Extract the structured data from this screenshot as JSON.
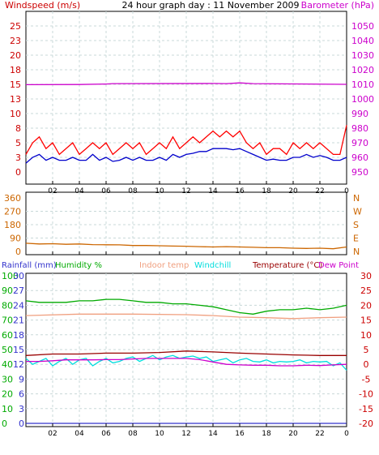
{
  "chart_data": [
    {
      "type": "line",
      "title": "24 hour graph day : 11 November 2009",
      "left_label": "Windspeed (m/s)",
      "right_label": "Barometer (hPa)",
      "left_ticks": [
        "0",
        "3",
        "5",
        "8",
        "10",
        "13",
        "15",
        "18",
        "20",
        "23",
        "25"
      ],
      "right_ticks": [
        "950",
        "960",
        "970",
        "980",
        "990",
        "1000",
        "1010",
        "1020",
        "1030",
        "1040",
        "1050"
      ],
      "x_ticks": [
        "02",
        "04",
        "06",
        "08",
        "10",
        "12",
        "14",
        "16",
        "18",
        "20",
        "22",
        "0"
      ],
      "ylim_left": [
        0,
        25
      ],
      "ylim_right": [
        950,
        1050
      ],
      "xlim": [
        0,
        24
      ],
      "grid": true,
      "series": [
        {
          "name": "Barometer",
          "color": "#cc00cc",
          "axis": "right",
          "x": [
            0,
            4,
            6,
            6.5,
            14,
            15,
            16,
            17,
            24
          ],
          "y": [
            1009.8,
            1009.9,
            1010.2,
            1010.5,
            1010.6,
            1010.5,
            1011.0,
            1010.5,
            1010.0
          ]
        },
        {
          "name": "Gust",
          "color": "#ff0000",
          "axis": "left",
          "x": [
            0,
            0.5,
            1,
            1.5,
            2,
            2.5,
            3,
            3.5,
            4,
            4.5,
            5,
            5.5,
            6,
            6.5,
            7,
            7.5,
            8,
            8.5,
            9,
            9.5,
            10,
            10.5,
            11,
            11.5,
            12,
            12.5,
            13,
            13.5,
            14,
            14.5,
            15,
            15.5,
            16,
            16.5,
            17,
            17.5,
            18,
            18.5,
            19,
            19.5,
            20,
            20.5,
            21,
            21.5,
            22,
            22.5,
            23,
            23.5,
            24
          ],
          "y": [
            3,
            5,
            6,
            4,
            5,
            3,
            4,
            5,
            3,
            4,
            5,
            4,
            5,
            3,
            4,
            5,
            4,
            5,
            3,
            4,
            5,
            4,
            6,
            4,
            5,
            6,
            5,
            6,
            7,
            6,
            7,
            6,
            7,
            5,
            4,
            5,
            3,
            4,
            4,
            3,
            5,
            4,
            5,
            4,
            5,
            4,
            3,
            3,
            8
          ]
        },
        {
          "name": "Average",
          "color": "#0000cc",
          "axis": "left",
          "x": [
            0,
            0.5,
            1,
            1.5,
            2,
            2.5,
            3,
            3.5,
            4,
            4.5,
            5,
            5.5,
            6,
            6.5,
            7,
            7.5,
            8,
            8.5,
            9,
            9.5,
            10,
            10.5,
            11,
            11.5,
            12,
            12.5,
            13,
            13.5,
            14,
            14.5,
            15,
            15.5,
            16,
            16.5,
            17,
            17.5,
            18,
            18.5,
            19,
            19.5,
            20,
            20.5,
            21,
            21.5,
            22,
            22.5,
            23,
            23.5,
            24
          ],
          "y": [
            1.5,
            2.5,
            3,
            2,
            2.5,
            2,
            2,
            2.5,
            2,
            2,
            3,
            2,
            2.5,
            1.8,
            2,
            2.5,
            2,
            2.5,
            2,
            2,
            2.5,
            2,
            3,
            2.5,
            3,
            3.2,
            3.5,
            3.5,
            4,
            4,
            4,
            3.8,
            4,
            3.5,
            3,
            2.5,
            2,
            2.2,
            2,
            2,
            2.5,
            2.5,
            3,
            2.5,
            2.8,
            2.5,
            2,
            2,
            2.5
          ]
        }
      ]
    },
    {
      "type": "line",
      "left_ticks": [
        "0",
        "90",
        "180",
        "270",
        "360"
      ],
      "right_ticks": [
        "N",
        "E",
        "S",
        "W",
        "N"
      ],
      "ylim_left": [
        0,
        360
      ],
      "xlim": [
        0,
        24
      ],
      "series": [
        {
          "name": "Wind direction",
          "color": "#cc6600",
          "axis": "left",
          "x": [
            0,
            1,
            2,
            3,
            4,
            5,
            6,
            7,
            8,
            9,
            10,
            11,
            12,
            13,
            14,
            15,
            16,
            17,
            18,
            19,
            20,
            21,
            22,
            23,
            24
          ],
          "y": [
            55,
            50,
            52,
            48,
            50,
            46,
            45,
            44,
            40,
            40,
            38,
            36,
            35,
            32,
            30,
            32,
            30,
            28,
            25,
            25,
            22,
            20,
            22,
            18,
            30
          ]
        }
      ]
    },
    {
      "type": "line",
      "labels": {
        "rainfall": "Rainfall (mm)",
        "humidity": "Humidity %",
        "indoor": "Indoor temp",
        "windchill": "Windchill",
        "temperature": "Temperature (°C)",
        "dewpoint": "Dew Point"
      },
      "rain_ticks": [
        "0",
        "3",
        "6",
        "9",
        "12",
        "15",
        "18",
        "21",
        "24",
        "27",
        "30"
      ],
      "humidity_ticks": [
        "0",
        "10",
        "20",
        "30",
        "40",
        "50",
        "60",
        "70",
        "80",
        "90",
        "100"
      ],
      "temp_ticks": [
        "-20",
        "-15",
        "-10",
        "-5",
        "0",
        "5",
        "10",
        "15",
        "20",
        "25",
        "30"
      ],
      "ylim_temp": [
        -20,
        30
      ],
      "ylim_humidity": [
        0,
        100
      ],
      "ylim_rain": [
        0,
        30
      ],
      "xlim": [
        0,
        24
      ],
      "series": [
        {
          "name": "Humidity",
          "color": "#00aa00",
          "axis": "humidity",
          "x": [
            0,
            1,
            2,
            3,
            4,
            5,
            6,
            7,
            8,
            9,
            10,
            11,
            12,
            13,
            14,
            15,
            16,
            17,
            18,
            19,
            20,
            21,
            22,
            23,
            24
          ],
          "y": [
            83,
            82,
            82,
            82,
            83,
            83,
            84,
            84,
            83,
            82,
            82,
            81,
            81,
            80,
            79,
            77,
            75,
            74,
            76,
            77,
            77,
            78,
            77,
            78,
            80
          ]
        },
        {
          "name": "Indoor temp",
          "color": "#f0a080",
          "axis": "temp",
          "x": [
            0,
            4,
            8,
            12,
            14,
            16,
            18,
            20,
            22,
            24
          ],
          "y": [
            16.5,
            17,
            17,
            16.8,
            16.5,
            16,
            15.8,
            15.5,
            15.8,
            16
          ]
        },
        {
          "name": "Temperature",
          "color": "#990000",
          "axis": "temp",
          "x": [
            0,
            2,
            4,
            6,
            8,
            10,
            12,
            14,
            16,
            18,
            20,
            22,
            24
          ],
          "y": [
            3,
            3.5,
            3.5,
            3.8,
            3.8,
            4,
            4.5,
            4.2,
            3.8,
            3.5,
            3.2,
            3,
            3
          ]
        },
        {
          "name": "Windchill",
          "color": "#00dddd",
          "axis": "temp",
          "x": [
            0,
            0.5,
            1,
            1.5,
            2,
            2.5,
            3,
            3.5,
            4,
            4.5,
            5,
            5.5,
            6,
            6.5,
            7,
            7.5,
            8,
            8.5,
            9,
            9.5,
            10,
            10.5,
            11,
            11.5,
            12,
            12.5,
            13,
            13.5,
            14,
            14.5,
            15,
            15.5,
            16,
            16.5,
            17,
            17.5,
            18,
            18.5,
            19,
            19.5,
            20,
            20.5,
            21,
            21.5,
            22,
            22.5,
            23,
            23.5,
            24
          ],
          "y": [
            2,
            0,
            1,
            2,
            -0.5,
            1,
            2,
            0,
            1.5,
            2,
            -0.5,
            1,
            2,
            0.5,
            1,
            2,
            2.5,
            1,
            2,
            3,
            1.5,
            2.5,
            3,
            2,
            2.5,
            2.8,
            2,
            2.5,
            1,
            1.5,
            2,
            0.5,
            1.5,
            2,
            1,
            0.8,
            1.5,
            0.5,
            1,
            0.8,
            1,
            1.5,
            0.5,
            1,
            0.8,
            1,
            -0.5,
            0.5,
            -2
          ]
        },
        {
          "name": "Dew Point",
          "color": "#cc00cc",
          "axis": "temp",
          "x": [
            0,
            1,
            2,
            3,
            4,
            5,
            6,
            7,
            8,
            9,
            10,
            11,
            12,
            13,
            14,
            15,
            16,
            17,
            18,
            19,
            20,
            21,
            22,
            23,
            24
          ],
          "y": [
            1,
            1,
            1.2,
            1.5,
            1.5,
            1.5,
            1.6,
            1.6,
            1.8,
            2,
            2,
            2,
            2,
            1.6,
            0.8,
            0,
            -0.2,
            -0.3,
            -0.3,
            -0.5,
            -0.5,
            -0.3,
            -0.4,
            -0.2,
            0
          ]
        },
        {
          "name": "Rainfall",
          "color": "#3333cc",
          "axis": "rain",
          "x": [
            0,
            24
          ],
          "y": [
            0,
            0
          ]
        }
      ]
    }
  ]
}
